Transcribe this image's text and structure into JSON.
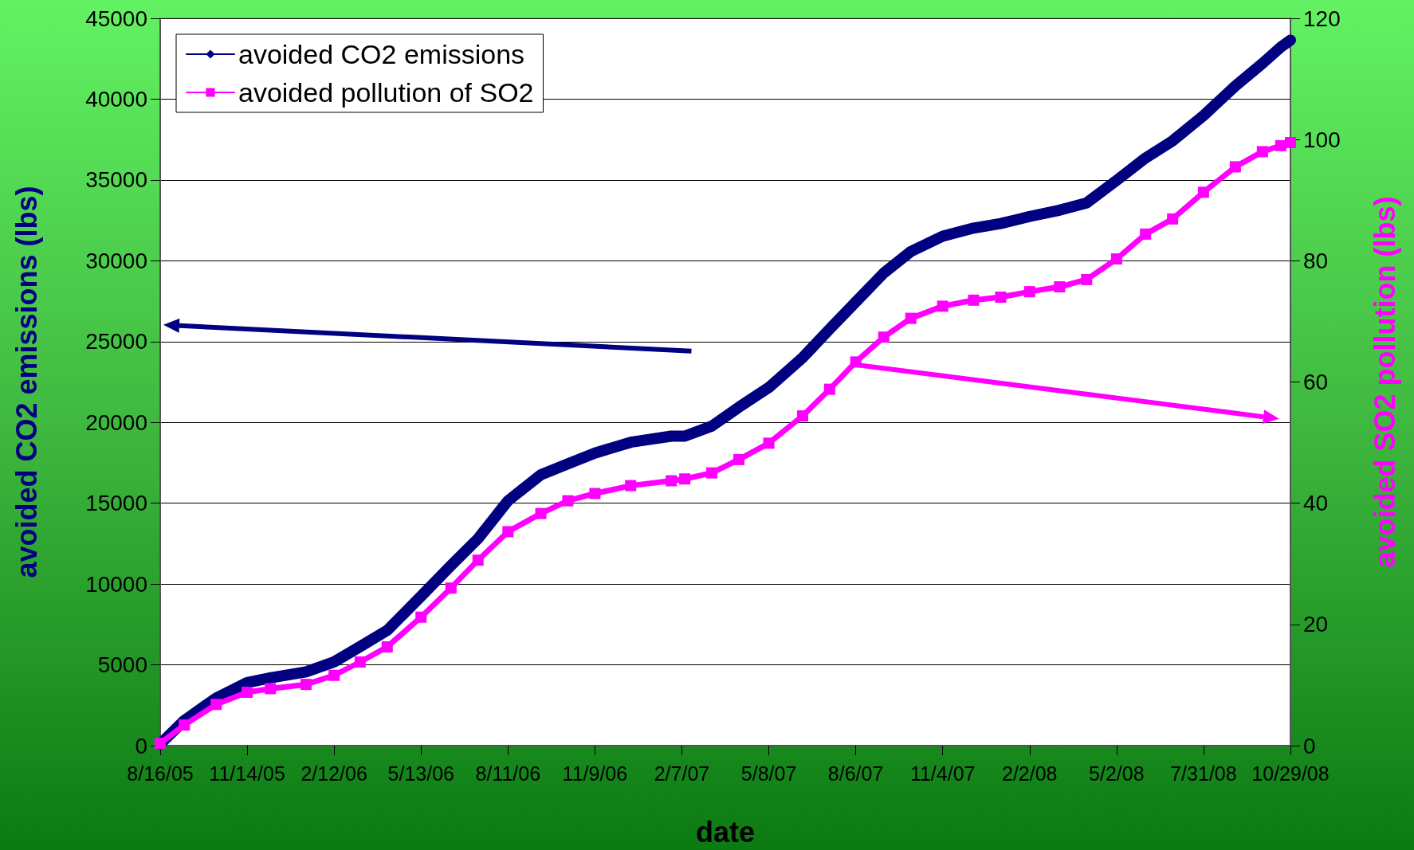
{
  "chart_data": {
    "type": "line",
    "xlabel": "date",
    "ylabel": "avoided CO2 emissions (lbs)",
    "y2label": "avoided SO2 pollution (lbs)",
    "x": [
      "2005-08-16",
      "2005-09-10",
      "2005-10-13",
      "2005-11-14",
      "2005-12-08",
      "2006-01-14",
      "2006-02-12",
      "2006-03-11",
      "2006-04-08",
      "2006-05-13",
      "2006-06-13",
      "2006-07-11",
      "2006-08-11",
      "2006-09-14",
      "2006-10-12",
      "2006-11-09",
      "2006-12-16",
      "2007-01-27",
      "2007-02-10",
      "2007-03-10",
      "2007-04-07",
      "2007-05-08",
      "2007-06-12",
      "2007-07-10",
      "2007-08-06",
      "2007-09-04",
      "2007-10-02",
      "2007-11-04",
      "2007-12-06",
      "2008-01-03",
      "2008-02-02",
      "2008-03-04",
      "2008-04-01",
      "2008-05-02",
      "2008-06-01",
      "2008-06-29",
      "2008-07-31",
      "2008-09-02",
      "2008-09-30",
      "2008-10-19",
      "2008-10-29"
    ],
    "series": [
      {
        "name": "avoided CO2 emissions",
        "color": "#000080",
        "marker": "diamond",
        "values": [
          100,
          1560,
          2950,
          3900,
          4200,
          4570,
          5180,
          6130,
          7130,
          9240,
          11140,
          12810,
          15150,
          16760,
          17430,
          18100,
          18770,
          19150,
          19150,
          19770,
          20940,
          22160,
          24000,
          25780,
          27450,
          29240,
          30570,
          31520,
          32020,
          32300,
          32740,
          33130,
          33580,
          34970,
          36360,
          37420,
          38980,
          40820,
          42210,
          43220,
          43650
        ]
      },
      {
        "name": "avoided pollution of SO2",
        "color": "#ff00ff",
        "marker": "square",
        "axis": "y2",
        "values": [
          0.4,
          3.4,
          6.8,
          8.8,
          9.4,
          10.1,
          11.6,
          13.8,
          16.3,
          21.2,
          26.0,
          30.6,
          35.3,
          38.3,
          40.4,
          41.6,
          42.9,
          43.7,
          44.0,
          45.0,
          47.2,
          49.9,
          54.4,
          58.8,
          63.3,
          67.4,
          70.5,
          72.5,
          73.5,
          74.0,
          74.9,
          75.7,
          76.9,
          80.3,
          84.4,
          86.9,
          91.3,
          95.5,
          98.0,
          99.0,
          99.5
        ]
      }
    ],
    "xlim": [
      "2005-08-16",
      "2008-10-29"
    ],
    "xticks": [
      {
        "value": "2005-08-16",
        "label": "8/16/05"
      },
      {
        "value": "2005-11-14",
        "label": "11/14/05"
      },
      {
        "value": "2006-02-12",
        "label": "2/12/06"
      },
      {
        "value": "2006-05-13",
        "label": "5/13/06"
      },
      {
        "value": "2006-08-11",
        "label": "8/11/06"
      },
      {
        "value": "2006-11-09",
        "label": "11/9/06"
      },
      {
        "value": "2007-02-07",
        "label": "2/7/07"
      },
      {
        "value": "2007-05-08",
        "label": "5/8/07"
      },
      {
        "value": "2007-08-06",
        "label": "8/6/07"
      },
      {
        "value": "2007-11-04",
        "label": "11/4/07"
      },
      {
        "value": "2008-02-02",
        "label": "2/2/08"
      },
      {
        "value": "2008-05-02",
        "label": "5/2/08"
      },
      {
        "value": "2008-07-31",
        "label": "7/31/08"
      },
      {
        "value": "2008-10-29",
        "label": "10/29/08"
      }
    ],
    "ylim": [
      0,
      45000
    ],
    "yticks": [
      0,
      5000,
      10000,
      15000,
      20000,
      25000,
      30000,
      35000,
      40000,
      45000
    ],
    "y2lim": [
      0,
      120
    ],
    "y2ticks": [
      0,
      20,
      40,
      60,
      80,
      100,
      120
    ],
    "grid": "y",
    "legend": "top left",
    "line_style": "solid"
  }
}
